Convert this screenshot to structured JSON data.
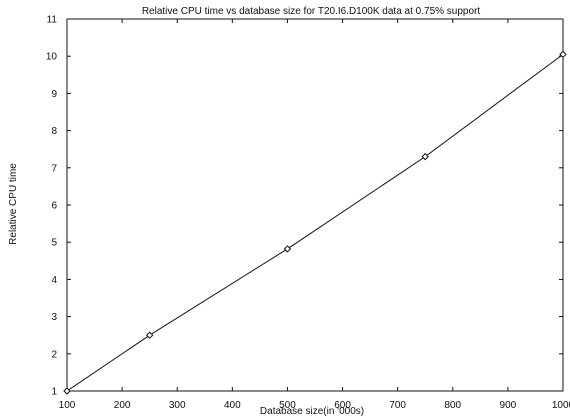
{
  "chart_data": {
    "type": "line",
    "title": "Relative CPU time vs database size for T20.I6.D100K data at 0.75% support",
    "xlabel": "Database size(in '000s)",
    "ylabel": "Relative CPU time",
    "xlim": [
      100,
      1000
    ],
    "ylim": [
      1,
      11
    ],
    "x_ticks": [
      100,
      200,
      300,
      400,
      500,
      600,
      700,
      800,
      900,
      1000
    ],
    "y_ticks": [
      1,
      2,
      3,
      4,
      5,
      6,
      7,
      8,
      9,
      10,
      11
    ],
    "x_tick_labels": [
      "100",
      "200",
      "300",
      "400",
      "500",
      "600",
      "700",
      "800",
      "900",
      "1000"
    ],
    "y_tick_labels": [
      "1",
      "2",
      "3",
      "4",
      "5",
      "6",
      "7",
      "8",
      "9",
      "10",
      "11"
    ],
    "grid": false,
    "legend": "none",
    "series": [
      {
        "x": [
          100,
          250,
          500,
          750,
          1000
        ],
        "values": [
          1,
          2.5,
          4.82,
          7.3,
          10.05
        ],
        "marker": "diamond",
        "color": "#111111"
      }
    ]
  }
}
